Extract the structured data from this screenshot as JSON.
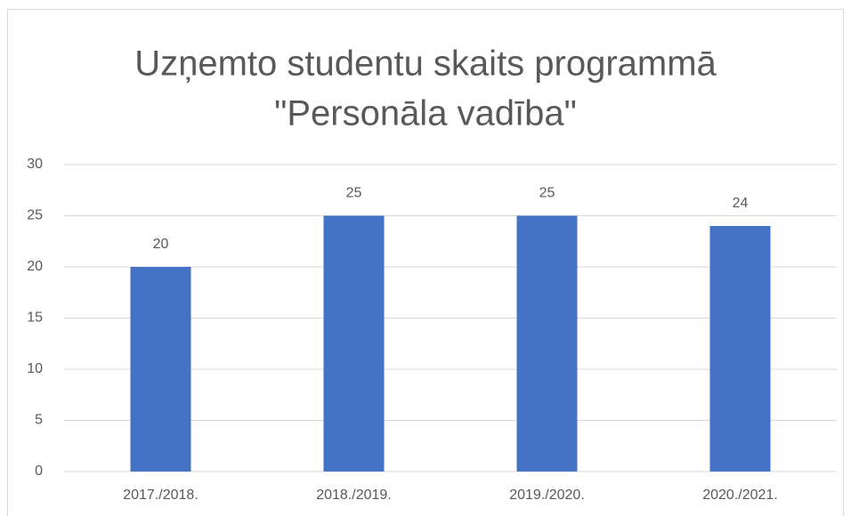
{
  "chart_data": {
    "type": "bar",
    "title": [
      "Uzņemto studentu skaits programmā",
      "\"Personāla vadība\""
    ],
    "categories": [
      "2017./2018.",
      "2018./2019.",
      "2019./2020.",
      "2020./2021."
    ],
    "values": [
      20,
      25,
      25,
      24
    ],
    "color": "#4472c4",
    "ylim": [
      0,
      30
    ],
    "yticks": [
      0,
      5,
      10,
      15,
      20,
      25,
      30
    ],
    "grid": true
  }
}
